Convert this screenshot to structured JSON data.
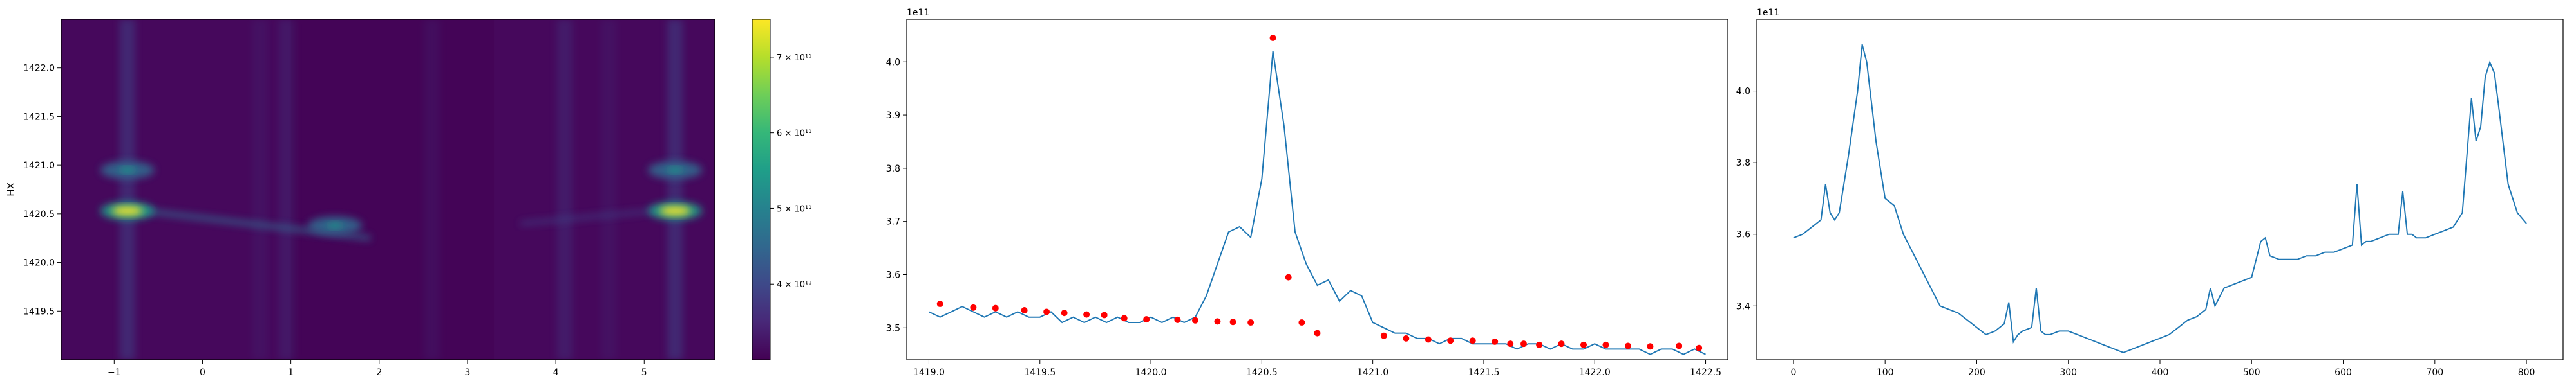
{
  "chart_data": [
    {
      "type": "heatmap",
      "ylabel": "HX",
      "xlim": [
        -1.6,
        5.8
      ],
      "ylim": [
        1419.0,
        1422.5
      ],
      "xticks": [
        -1,
        0,
        1,
        2,
        3,
        4,
        5
      ],
      "yticks": [
        1419.5,
        1420.0,
        1420.5,
        1421.0,
        1421.5,
        1422.0
      ],
      "colormap": "viridis",
      "colorbar": {
        "range": [
          300000000000.0,
          750000000000.0
        ],
        "ticks": [
          400000000000.0,
          500000000000.0,
          600000000000.0,
          700000000000.0
        ],
        "tick_labels": [
          "4 × 10¹¹",
          "5 × 10¹¹",
          "6 × 10¹¹",
          "7 × 10¹¹"
        ]
      },
      "vertical_bands": [
        {
          "x": -0.85,
          "strength": 0.5
        },
        {
          "x": 0.95,
          "strength": 0.25
        },
        {
          "x": 0.65,
          "strength": 0.15
        },
        {
          "x": 2.6,
          "strength": 0.15
        },
        {
          "x": 4.1,
          "strength": 0.3
        },
        {
          "x": 4.6,
          "strength": 0.15
        },
        {
          "x": 5.35,
          "strength": 0.5
        }
      ],
      "hotspots": [
        {
          "x": -0.85,
          "y": 1420.53,
          "strength": 1.0
        },
        {
          "x": -0.85,
          "y": 1420.95,
          "strength": 0.55
        },
        {
          "x": 5.35,
          "y": 1420.53,
          "strength": 1.0
        },
        {
          "x": 5.35,
          "y": 1420.95,
          "strength": 0.55
        },
        {
          "x": 1.5,
          "y": 1420.38,
          "strength": 0.55
        }
      ]
    },
    {
      "type": "line",
      "offset_text": "1e11",
      "xlim": [
        1418.9,
        1422.6
      ],
      "ylim": [
        3.44,
        4.08
      ],
      "xticks": [
        1419.0,
        1419.5,
        1420.0,
        1420.5,
        1421.0,
        1421.5,
        1422.0,
        1422.5
      ],
      "yticks": [
        3.5,
        3.6,
        3.7,
        3.8,
        3.9,
        4.0
      ],
      "line_color": "#1f77b4",
      "x": [
        1419.0,
        1419.05,
        1419.1,
        1419.15,
        1419.2,
        1419.25,
        1419.3,
        1419.35,
        1419.4,
        1419.45,
        1419.5,
        1419.55,
        1419.6,
        1419.65,
        1419.7,
        1419.75,
        1419.8,
        1419.85,
        1419.9,
        1419.95,
        1420.0,
        1420.05,
        1420.1,
        1420.15,
        1420.2,
        1420.25,
        1420.3,
        1420.35,
        1420.4,
        1420.45,
        1420.5,
        1420.55,
        1420.6,
        1420.65,
        1420.7,
        1420.75,
        1420.8,
        1420.85,
        1420.9,
        1420.95,
        1421.0,
        1421.05,
        1421.1,
        1421.15,
        1421.2,
        1421.25,
        1421.3,
        1421.35,
        1421.4,
        1421.45,
        1421.5,
        1421.55,
        1421.6,
        1421.65,
        1421.7,
        1421.75,
        1421.8,
        1421.85,
        1421.9,
        1421.95,
        1422.0,
        1422.05,
        1422.1,
        1422.15,
        1422.2,
        1422.25,
        1422.3,
        1422.35,
        1422.4,
        1422.45,
        1422.5
      ],
      "values": [
        3.53,
        3.52,
        3.53,
        3.54,
        3.53,
        3.52,
        3.53,
        3.52,
        3.53,
        3.52,
        3.52,
        3.53,
        3.51,
        3.52,
        3.51,
        3.52,
        3.51,
        3.52,
        3.51,
        3.51,
        3.52,
        3.51,
        3.52,
        3.51,
        3.52,
        3.56,
        3.62,
        3.68,
        3.69,
        3.67,
        3.78,
        4.02,
        3.88,
        3.68,
        3.62,
        3.58,
        3.59,
        3.55,
        3.57,
        3.56,
        3.51,
        3.5,
        3.49,
        3.49,
        3.48,
        3.48,
        3.47,
        3.48,
        3.48,
        3.47,
        3.47,
        3.47,
        3.47,
        3.46,
        3.47,
        3.47,
        3.46,
        3.47,
        3.46,
        3.46,
        3.47,
        3.46,
        3.46,
        3.46,
        3.46,
        3.45,
        3.46,
        3.46,
        3.45,
        3.46,
        3.45
      ],
      "markers": {
        "color": "#ff0000",
        "x": [
          1419.05,
          1419.2,
          1419.3,
          1419.43,
          1419.53,
          1419.61,
          1419.71,
          1419.79,
          1419.88,
          1419.98,
          1420.12,
          1420.2,
          1420.3,
          1420.37,
          1420.45,
          1420.55,
          1420.62,
          1420.68,
          1420.75,
          1421.05,
          1421.15,
          1421.25,
          1421.35,
          1421.45,
          1421.55,
          1421.62,
          1421.68,
          1421.75,
          1421.85,
          1421.95,
          1422.05,
          1422.15,
          1422.25,
          1422.38,
          1422.47
        ],
        "y": [
          3.545,
          3.538,
          3.537,
          3.533,
          3.53,
          3.528,
          3.525,
          3.524,
          3.518,
          3.516,
          3.515,
          3.514,
          3.512,
          3.511,
          3.51,
          4.045,
          3.595,
          3.51,
          3.49,
          3.485,
          3.48,
          3.478,
          3.476,
          3.476,
          3.474,
          3.47,
          3.47,
          3.468,
          3.47,
          3.468,
          3.468,
          3.466,
          3.465,
          3.466,
          3.462
        ]
      }
    },
    {
      "type": "line",
      "offset_text": "1e11",
      "xlim": [
        -40,
        840
      ],
      "ylim": [
        3.25,
        4.2
      ],
      "xticks": [
        0,
        100,
        200,
        300,
        400,
        500,
        600,
        700,
        800
      ],
      "yticks": [
        3.4,
        3.6,
        3.8,
        4.0
      ],
      "line_color": "#1f77b4",
      "x": [
        0,
        10,
        20,
        30,
        35,
        40,
        45,
        50,
        60,
        70,
        75,
        80,
        90,
        100,
        110,
        120,
        130,
        140,
        150,
        160,
        170,
        180,
        190,
        200,
        210,
        220,
        230,
        235,
        240,
        245,
        250,
        260,
        265,
        270,
        275,
        280,
        290,
        300,
        310,
        320,
        330,
        340,
        350,
        360,
        370,
        380,
        390,
        400,
        410,
        420,
        430,
        440,
        450,
        455,
        460,
        470,
        480,
        490,
        500,
        510,
        515,
        520,
        530,
        540,
        550,
        560,
        570,
        580,
        590,
        600,
        610,
        615,
        620,
        625,
        630,
        640,
        650,
        660,
        665,
        670,
        675,
        680,
        690,
        700,
        710,
        720,
        730,
        740,
        745,
        750,
        755,
        760,
        765,
        770,
        780,
        790,
        800
      ],
      "values": [
        3.59,
        3.6,
        3.62,
        3.64,
        3.74,
        3.66,
        3.64,
        3.66,
        3.82,
        4.0,
        4.13,
        4.08,
        3.86,
        3.7,
        3.68,
        3.6,
        3.55,
        3.5,
        3.45,
        3.4,
        3.39,
        3.38,
        3.36,
        3.34,
        3.32,
        3.33,
        3.35,
        3.41,
        3.3,
        3.32,
        3.33,
        3.34,
        3.45,
        3.33,
        3.32,
        3.32,
        3.33,
        3.33,
        3.32,
        3.31,
        3.3,
        3.29,
        3.28,
        3.27,
        3.28,
        3.29,
        3.3,
        3.31,
        3.32,
        3.34,
        3.36,
        3.37,
        3.39,
        3.45,
        3.4,
        3.45,
        3.46,
        3.47,
        3.48,
        3.58,
        3.59,
        3.54,
        3.53,
        3.53,
        3.53,
        3.54,
        3.54,
        3.55,
        3.55,
        3.56,
        3.57,
        3.74,
        3.57,
        3.58,
        3.58,
        3.59,
        3.6,
        3.6,
        3.72,
        3.6,
        3.6,
        3.59,
        3.59,
        3.6,
        3.61,
        3.62,
        3.66,
        3.98,
        3.86,
        3.9,
        4.04,
        4.08,
        4.05,
        3.95,
        3.74,
        3.66,
        3.63
      ]
    }
  ]
}
